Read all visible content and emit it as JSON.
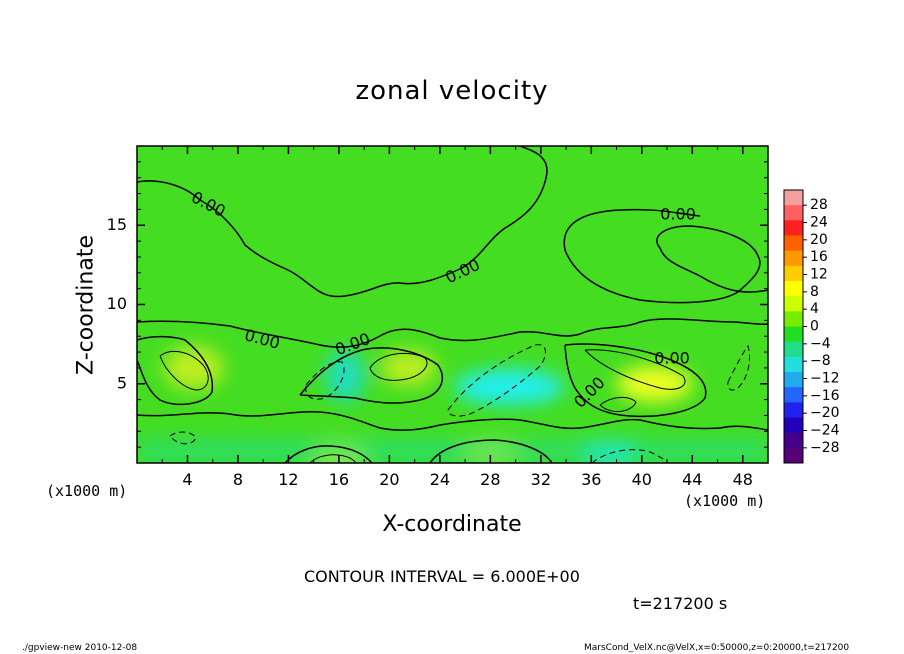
{
  "chart_data": {
    "type": "heatmap",
    "title": "zonal velocity",
    "xlabel": "X-coordinate",
    "ylabel": "Z-coordinate",
    "x_unit": "(x1000 m)",
    "xlim": [
      0,
      50
    ],
    "ylim": [
      0,
      20
    ],
    "x_ticks": [
      4,
      8,
      12,
      16,
      20,
      24,
      28,
      32,
      36,
      40,
      44,
      48
    ],
    "y_ticks": [
      5,
      10,
      15
    ],
    "colorbar": {
      "labels": [
        "28",
        "24",
        "20",
        "16",
        "12",
        "8",
        "4",
        "0",
        "−4",
        "−8",
        "−12",
        "−16",
        "−20",
        "−24",
        "−28"
      ],
      "colors": [
        "#f4a0a0",
        "#ff6060",
        "#ff2020",
        "#ff6000",
        "#ff9900",
        "#ffcc00",
        "#ffff00",
        "#ccff00",
        "#77ee00",
        "#22dd22",
        "#22dd88",
        "#22dddd",
        "#22aaee",
        "#2266ff",
        "#2222ee",
        "#2200bb",
        "#440088",
        "#550077"
      ]
    },
    "contour_labels": [
      "0.00",
      "0.00",
      "0.00",
      "0.00",
      "0.00",
      "0.00",
      "0.00"
    ],
    "contour_interval": "CONTOUR INTERVAL = 6.000E+00",
    "time": "t=217200 s",
    "features": [
      {
        "x": 4.5,
        "z": 6.0,
        "u": 7
      },
      {
        "x": 21.5,
        "z": 6.0,
        "u": 7
      },
      {
        "x": 41.0,
        "z": 5.0,
        "u": 8
      },
      {
        "x": 29.5,
        "z": 4.8,
        "u": -10
      },
      {
        "x": 16.5,
        "z": 5.5,
        "u": -7
      },
      {
        "x": 37.5,
        "z": 0.6,
        "u": -12
      },
      {
        "x": 16.0,
        "z": 0.5,
        "u": 7
      },
      {
        "x": 28.0,
        "z": 0.7,
        "u": 6
      }
    ]
  },
  "footer": {
    "left": "./gpview-new   2010-12-08",
    "right": "MarsCond_VelX.nc@VelX,x=0:50000,z=0:20000,t=217200"
  }
}
